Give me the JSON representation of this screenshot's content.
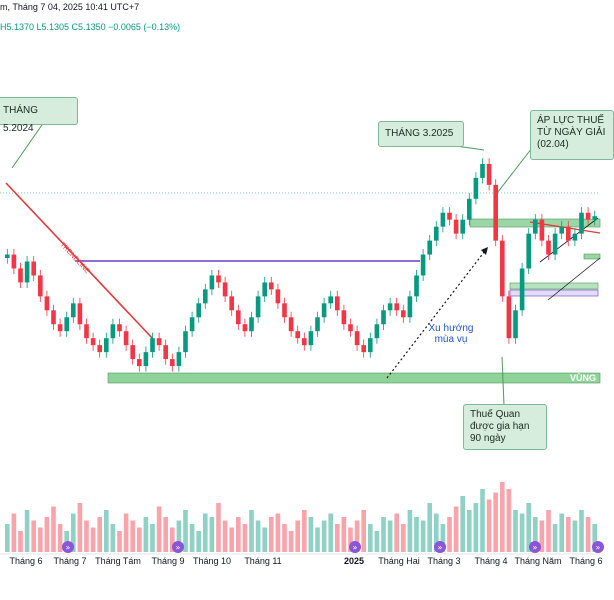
{
  "header": {
    "title_fragment": "m, Tháng 7 04, 2025 10:41 UTC+7",
    "ohlc_fragment": "H5.1370  L5.1305  C5.1350  −0.0065 (−0.13%)"
  },
  "annotations": {
    "thang_5_2024": "THÁNG 5.2024",
    "thang_3_2025": "THÁNG 3.2025",
    "ap_luc_thue": "ÁP LỰC THUẾ\nTỪ NGÀY GIẢI\n(02.04)",
    "thue_quan": "Thuế Quan\nđược gia hạn\n90 ngày",
    "xu_huong": "Xu hướng\nmùa vụ",
    "trendline": "TRENDLINE",
    "vung": "VÙNG"
  },
  "x_axis": [
    "Tháng 6",
    "Tháng 7",
    "Tháng Tám",
    "Tháng 9",
    "Tháng 10",
    "Tháng 11",
    "2025",
    "Tháng Hai",
    "Tháng 3",
    "Tháng 4",
    "Tháng Năm",
    "Tháng 6"
  ],
  "colors": {
    "up": "#089981",
    "down": "#f23645",
    "trendline": "#e0393e",
    "horizontal": "#6a3cc9",
    "zone": "#7fc28a",
    "zone_edge": "#4f9a5c",
    "dotted": "#131722"
  },
  "chart_data": {
    "type": "candlestick",
    "instrument_price_last": 5.135,
    "close_series": [
      5.08,
      5.06,
      5.04,
      5.07,
      5.05,
      5.02,
      5.0,
      4.98,
      4.97,
      4.99,
      5.01,
      4.98,
      4.96,
      4.95,
      4.94,
      4.96,
      4.98,
      4.97,
      4.95,
      4.93,
      4.92,
      4.94,
      4.96,
      4.95,
      4.93,
      4.92,
      4.94,
      4.97,
      4.99,
      5.01,
      5.03,
      5.05,
      5.04,
      5.02,
      5.0,
      4.98,
      4.97,
      4.99,
      5.02,
      5.04,
      5.03,
      5.01,
      4.99,
      4.97,
      4.96,
      4.95,
      4.97,
      4.99,
      5.01,
      5.02,
      5.0,
      4.98,
      4.97,
      4.95,
      4.94,
      4.96,
      4.98,
      5.0,
      5.01,
      5.0,
      4.99,
      5.02,
      5.05,
      5.08,
      5.1,
      5.12,
      5.14,
      5.13,
      5.11,
      5.13,
      5.16,
      5.19,
      5.21,
      5.18,
      5.1,
      5.02,
      4.96,
      5.0,
      5.06,
      5.11,
      5.13,
      5.1,
      5.08,
      5.11,
      5.12,
      5.1,
      5.11,
      5.14,
      5.13,
      5.135
    ],
    "volume_series": [
      0.4,
      0.55,
      0.3,
      0.6,
      0.45,
      0.35,
      0.5,
      0.65,
      0.4,
      0.3,
      0.55,
      0.7,
      0.45,
      0.35,
      0.5,
      0.6,
      0.4,
      0.3,
      0.55,
      0.45,
      0.35,
      0.5,
      0.4,
      0.65,
      0.5,
      0.35,
      0.45,
      0.6,
      0.4,
      0.3,
      0.55,
      0.5,
      0.7,
      0.45,
      0.35,
      0.5,
      0.4,
      0.6,
      0.45,
      0.35,
      0.5,
      0.55,
      0.4,
      0.3,
      0.45,
      0.6,
      0.5,
      0.35,
      0.45,
      0.55,
      0.4,
      0.5,
      0.35,
      0.45,
      0.6,
      0.4,
      0.3,
      0.5,
      0.45,
      0.55,
      0.4,
      0.6,
      0.5,
      0.45,
      0.7,
      0.55,
      0.4,
      0.5,
      0.65,
      0.8,
      0.6,
      0.7,
      0.9,
      0.75,
      0.85,
      1.0,
      0.9,
      0.6,
      0.55,
      0.7,
      0.5,
      0.45,
      0.6,
      0.4,
      0.55,
      0.5,
      0.45,
      0.6,
      0.5,
      0.4
    ],
    "levels": {
      "support_zone": 4.93,
      "horizontal_resistance": 5.05,
      "upper_zone": 5.12,
      "small_zone_1": 5.03,
      "small_zone_2": 5.02
    }
  }
}
